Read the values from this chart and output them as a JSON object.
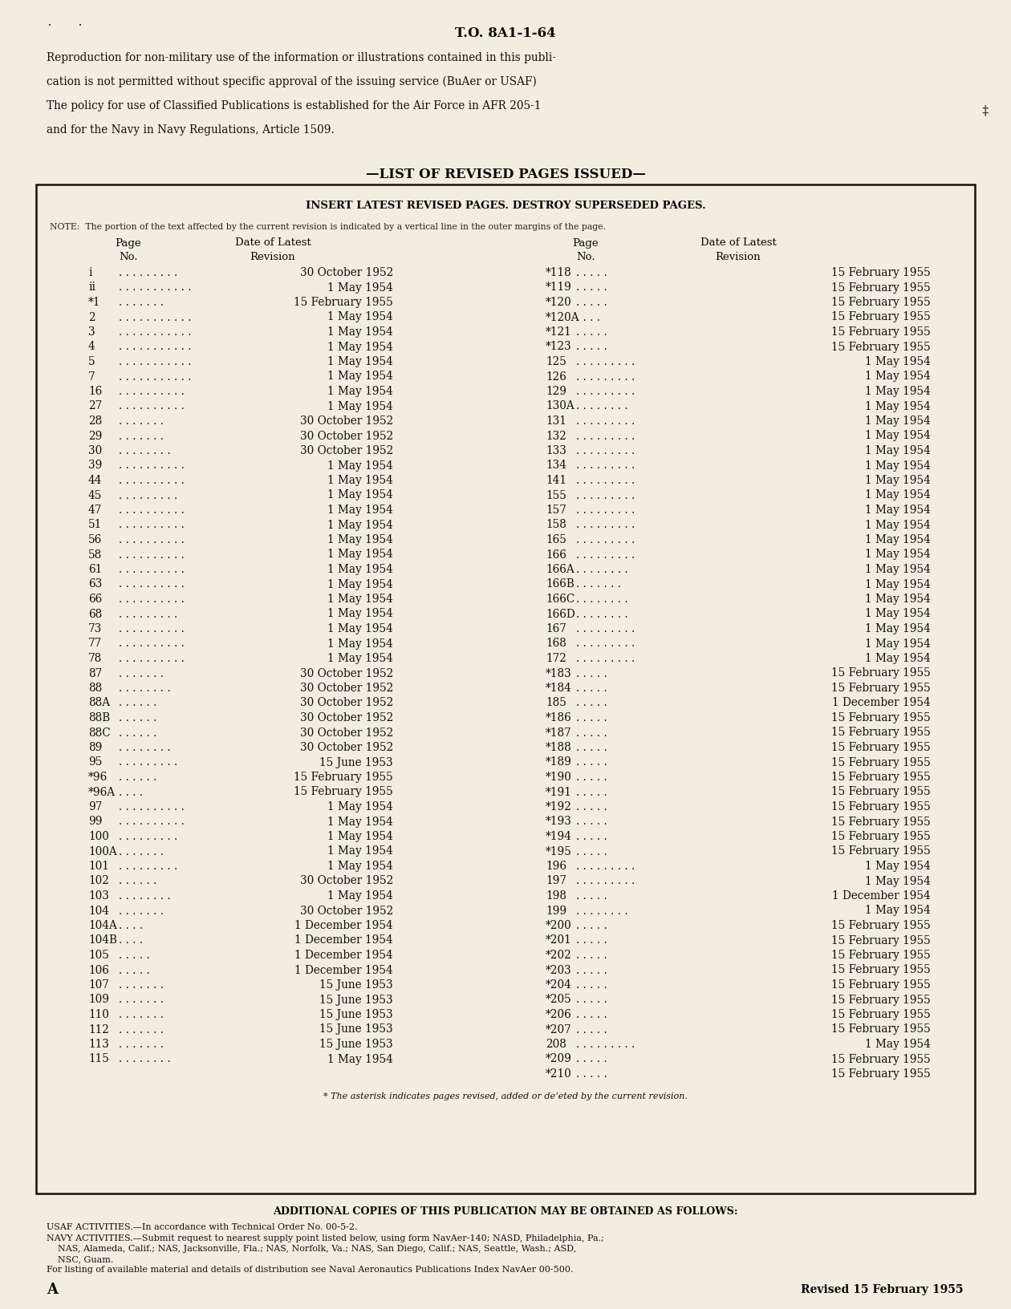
{
  "to_number": "T.O. 8A1-1-64",
  "repro_line1": "Reproduction for non-military use of the information or illustrations contained in this publi-",
  "repro_line2": "cation is not permitted without specific approval of the issuing service (BuAer or USAF)",
  "repro_line3": "The policy for use of Classified Publications is established for the Air Force in AFR 205-1",
  "repro_line4": "and for the Navy in Navy Regulations, Article 1509.",
  "list_title": "—LIST OF REVISED PAGES ISSUED—",
  "insert_text": "INSERT LATEST REVISED PAGES. DESTROY SUPERSEDED PAGES.",
  "note_text": "NOTE:  The portion of the text affected by the current revision is indicated by a vertical line in the outer margins of the page.",
  "left_entries": [
    [
      "i",
      ". . . . . . . . .",
      "30 October 1952"
    ],
    [
      "ii",
      ". . . . . . . . . . .",
      "1 May 1954"
    ],
    [
      "*1",
      ". . . . . . .",
      "15 February 1955"
    ],
    [
      "2",
      ". . . . . . . . . . .",
      "1 May 1954"
    ],
    [
      "3",
      ". . . . . . . . . . .",
      "1 May 1954"
    ],
    [
      "4",
      ". . . . . . . . . . .",
      "1 May 1954"
    ],
    [
      "5",
      ". . . . . . . . . . .",
      "1 May 1954"
    ],
    [
      "7",
      ". . . . . . . . . . .",
      "1 May 1954"
    ],
    [
      "16",
      ". . . . . . . . . .",
      "1 May 1954"
    ],
    [
      "27",
      ". . . . . . . . . .",
      "1 May 1954"
    ],
    [
      "28",
      ". . . . . . .",
      "30 October 1952"
    ],
    [
      "29",
      ". . . . . . .",
      "30 October 1952"
    ],
    [
      "30",
      ". . . . . . . .",
      "30 October 1952"
    ],
    [
      "39",
      ". . . . . . . . . .",
      "1 May 1954"
    ],
    [
      "44",
      ". . . . . . . . . .",
      "1 May 1954"
    ],
    [
      "45",
      ". . . . . . . . .",
      "1 May 1954"
    ],
    [
      "47",
      ". . . . . . . . . .",
      "1 May 1954"
    ],
    [
      "51",
      ". . . . . . . . . .",
      "1 May 1954"
    ],
    [
      "56",
      ". . . . . . . . . .",
      "1 May 1954"
    ],
    [
      "58",
      ". . . . . . . . . .",
      "1 May 1954"
    ],
    [
      "61",
      ". . . . . . . . . .",
      "1 May 1954"
    ],
    [
      "63",
      ". . . . . . . . . .",
      "1 May 1954"
    ],
    [
      "66",
      ". . . . . . . . . .",
      "1 May 1954"
    ],
    [
      "68",
      ". . . . . . . . .",
      "1 May 1954"
    ],
    [
      "73",
      ". . . . . . . . . .",
      "1 May 1954"
    ],
    [
      "77",
      ". . . . . . . . . .",
      "1 May 1954"
    ],
    [
      "78",
      ". . . . . . . . . .",
      "1 May 1954"
    ],
    [
      "87",
      ". . . . . . .",
      "30 October 1952"
    ],
    [
      "88",
      ". . . . . . . .",
      "30 October 1952"
    ],
    [
      "88A",
      ". . . . . .",
      "30 October 1952"
    ],
    [
      "88B",
      ". . . . . .",
      "30 October 1952"
    ],
    [
      "88C",
      ". . . . . .",
      "30 October 1952"
    ],
    [
      "89",
      ". . . . . . . .",
      "30 October 1952"
    ],
    [
      "95",
      ". . . . . . . . .",
      "15 June 1953"
    ],
    [
      "*96",
      ". . . . . .",
      "15 February 1955"
    ],
    [
      "*96A",
      ". . . .",
      "15 February 1955"
    ],
    [
      "97",
      ". . . . . . . . . .",
      "1 May 1954"
    ],
    [
      "99",
      ". . . . . . . . . .",
      "1 May 1954"
    ],
    [
      "100",
      ". . . . . . . . .",
      "1 May 1954"
    ],
    [
      "100A",
      ". . . . . . .",
      "1 May 1954"
    ],
    [
      "101",
      ". . . . . . . . .",
      "1 May 1954"
    ],
    [
      "102",
      ". . . . . .",
      "30 October 1952"
    ],
    [
      "103",
      ". . . . . . . .",
      "1 May 1954"
    ],
    [
      "104",
      ". . . . . . .",
      "30 October 1952"
    ],
    [
      "104A",
      ". . . .",
      "1 December 1954"
    ],
    [
      "104B",
      ". . . .",
      "1 December 1954"
    ],
    [
      "105",
      ". . . . .",
      "1 December 1954"
    ],
    [
      "106",
      ". . . . .",
      "1 December 1954"
    ],
    [
      "107",
      ". . . . . . .",
      "15 June 1953"
    ],
    [
      "109",
      ". . . . . . .",
      "15 June 1953"
    ],
    [
      "110",
      ". . . . . . .",
      "15 June 1953"
    ],
    [
      "112",
      ". . . . . . .",
      "15 June 1953"
    ],
    [
      "113",
      ". . . . . . .",
      "15 June 1953"
    ],
    [
      "115",
      ". . . . . . . .",
      "1 May 1954"
    ]
  ],
  "right_entries": [
    [
      "*118",
      ". . . . .",
      "15 February 1955"
    ],
    [
      "*119",
      ". . . . .",
      "15 February 1955"
    ],
    [
      "*120",
      ". . . . .",
      "15 February 1955"
    ],
    [
      "*120A",
      ". . . .",
      "15 February 1955"
    ],
    [
      "*121",
      ". . . . .",
      "15 February 1955"
    ],
    [
      "*123",
      ". . . . .",
      "15 February 1955"
    ],
    [
      "125",
      ". . . . . . . . .",
      "1 May 1954"
    ],
    [
      "126",
      ". . . . . . . . .",
      "1 May 1954"
    ],
    [
      "129",
      ". . . . . . . . .",
      "1 May 1954"
    ],
    [
      "130A",
      ". . . . . . . .",
      "1 May 1954"
    ],
    [
      "131",
      ". . . . . . . . .",
      "1 May 1954"
    ],
    [
      "132",
      ". . . . . . . . .",
      "1 May 1954"
    ],
    [
      "133",
      ". . . . . . . . .",
      "1 May 1954"
    ],
    [
      "134",
      ". . . . . . . . .",
      "1 May 1954"
    ],
    [
      "141",
      ". . . . . . . . .",
      "1 May 1954"
    ],
    [
      "155",
      ". . . . . . . . .",
      "1 May 1954"
    ],
    [
      "157",
      ". . . . . . . . .",
      "1 May 1954"
    ],
    [
      "158",
      ". . . . . . . . .",
      "1 May 1954"
    ],
    [
      "165",
      ". . . . . . . . .",
      "1 May 1954"
    ],
    [
      "166",
      ". . . . . . . . .",
      "1 May 1954"
    ],
    [
      "166A",
      ". . . . . . . .",
      "1 May 1954"
    ],
    [
      "166B",
      ". . . . . . .",
      "1 May 1954"
    ],
    [
      "166C",
      ". . . . . . . .",
      "1 May 1954"
    ],
    [
      "166D",
      ". . . . . . . .",
      "1 May 1954"
    ],
    [
      "167",
      ". . . . . . . . .",
      "1 May 1954"
    ],
    [
      "168",
      ". . . . . . . . .",
      "1 May 1954"
    ],
    [
      "172",
      ". . . . . . . . .",
      "1 May 1954"
    ],
    [
      "*183",
      ". . . . .",
      "15 February 1955"
    ],
    [
      "*184",
      ". . . . .",
      "15 February 1955"
    ],
    [
      "185",
      ". . . . .",
      "1 December 1954"
    ],
    [
      "*186",
      ". . . . .",
      "15 February 1955"
    ],
    [
      "*187",
      ". . . . .",
      "15 February 1955"
    ],
    [
      "*188",
      ". . . . .",
      "15 February 1955"
    ],
    [
      "*189",
      ". . . . .",
      "15 February 1955"
    ],
    [
      "*190",
      ". . . . .",
      "15 February 1955"
    ],
    [
      "*191",
      ". . . . .",
      "15 February 1955"
    ],
    [
      "*192",
      ". . . . .",
      "15 February 1955"
    ],
    [
      "*193",
      ". . . . .",
      "15 February 1955"
    ],
    [
      "*194",
      ". . . . .",
      "15 February 1955"
    ],
    [
      "*195",
      ". . . . .",
      "15 February 1955"
    ],
    [
      "196",
      ". . . . . . . . .",
      "1 May 1954"
    ],
    [
      "197",
      ". . . . . . . . .",
      "1 May 1954"
    ],
    [
      "198",
      ". . . . .",
      "1 December 1954"
    ],
    [
      "199",
      ". . . . . . . .",
      "1 May 1954"
    ],
    [
      "*200",
      ". . . . .",
      "15 February 1955"
    ],
    [
      "*201",
      ". . . . .",
      "15 February 1955"
    ],
    [
      "*202",
      ". . . . .",
      "15 February 1955"
    ],
    [
      "*203",
      ". . . . .",
      "15 February 1955"
    ],
    [
      "*204",
      ". . . . .",
      "15 February 1955"
    ],
    [
      "*205",
      ". . . . .",
      "15 February 1955"
    ],
    [
      "*206",
      ". . . . .",
      "15 February 1955"
    ],
    [
      "*207",
      ". . . . .",
      "15 February 1955"
    ],
    [
      "208",
      ". . . . . . . . .",
      "1 May 1954"
    ],
    [
      "*209",
      ". . . . .",
      "15 February 1955"
    ],
    [
      "*210",
      ". . . . .",
      "15 February 1955"
    ]
  ],
  "asterisk_note": "* The asterisk indicates pages revised, added or deʼeted by the current revision.",
  "additional_copies": "ADDITIONAL COPIES OF THIS PUBLICATION MAY BE OBTAINED AS FOLLOWS:",
  "usaf_line": "USAF ACTIVITIES.—In accordance with Technical Order No. 00-5-2.",
  "navy_line1": "NAVY ACTIVITIES.—Submit request to nearest supply point listed below, using form NavAer-140; NASD, Philadelphia, Pa.;",
  "navy_line2": "    NAS, Alameda, Calif.; NAS, Jacksonville, Fla.; NAS, Norfolk, Va.; NAS, San Diego, Calif.; NAS, Seattle, Wash.; ASD,",
  "navy_line3": "    NSC, Guam.",
  "listing_line": "For listing of available material and details of distribution see Naval Aeronautics Publications Index NavAer 00-500.",
  "page_letter": "A",
  "revised_date": "Revised 15 February 1955",
  "bg_color": "#f2ede0"
}
